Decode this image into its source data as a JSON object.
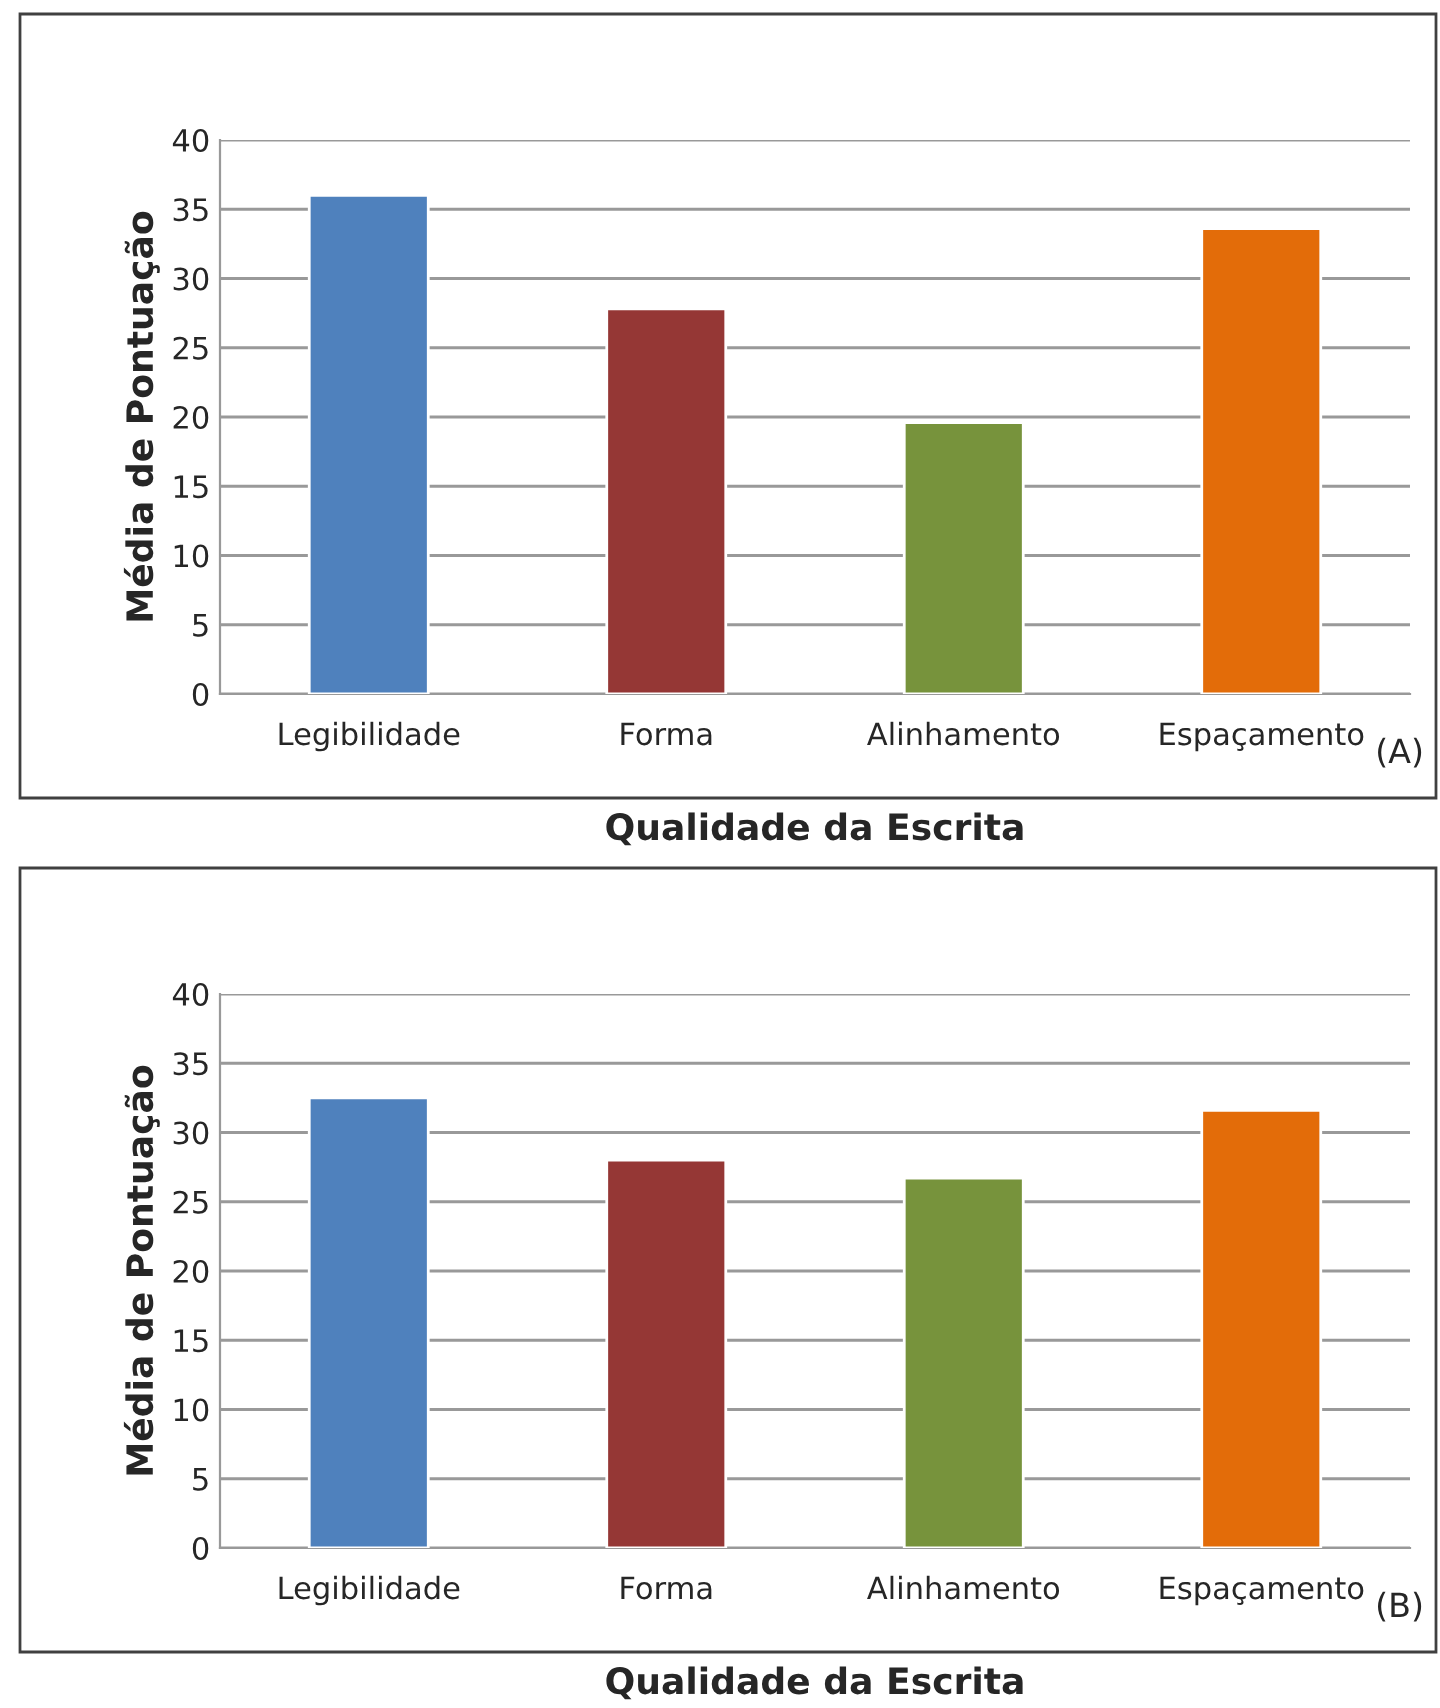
{
  "chart_data": [
    {
      "type": "bar",
      "categories": [
        "Legibilidade",
        "Forma",
        "Alinhamento",
        "Espaçamento"
      ],
      "values": [
        36.0,
        27.8,
        19.6,
        33.6
      ],
      "colors": [
        "#4f81bd",
        "#953735",
        "#77933c",
        "#e36c09"
      ],
      "xlabel": "Qualidade da Escrita",
      "ylabel": "Média de Pontuação",
      "ylim": [
        0,
        40
      ],
      "yticks": [
        0,
        5,
        10,
        15,
        20,
        25,
        30,
        35,
        40
      ],
      "grid": "y",
      "annotations": [
        "(A)"
      ]
    },
    {
      "type": "bar",
      "categories": [
        "Legibilidade",
        "Forma",
        "Alinhamento",
        "Espaçamento"
      ],
      "values": [
        32.5,
        28.0,
        26.7,
        31.6
      ],
      "colors": [
        "#4f81bd",
        "#953735",
        "#77933c",
        "#e36c09"
      ],
      "xlabel": "Qualidade da Escrita",
      "ylabel": "Média de Pontuação",
      "ylim": [
        0,
        40
      ],
      "yticks": [
        0,
        5,
        10,
        15,
        20,
        25,
        30,
        35,
        40
      ],
      "grid": "y",
      "annotations": [
        "(B)"
      ]
    }
  ]
}
